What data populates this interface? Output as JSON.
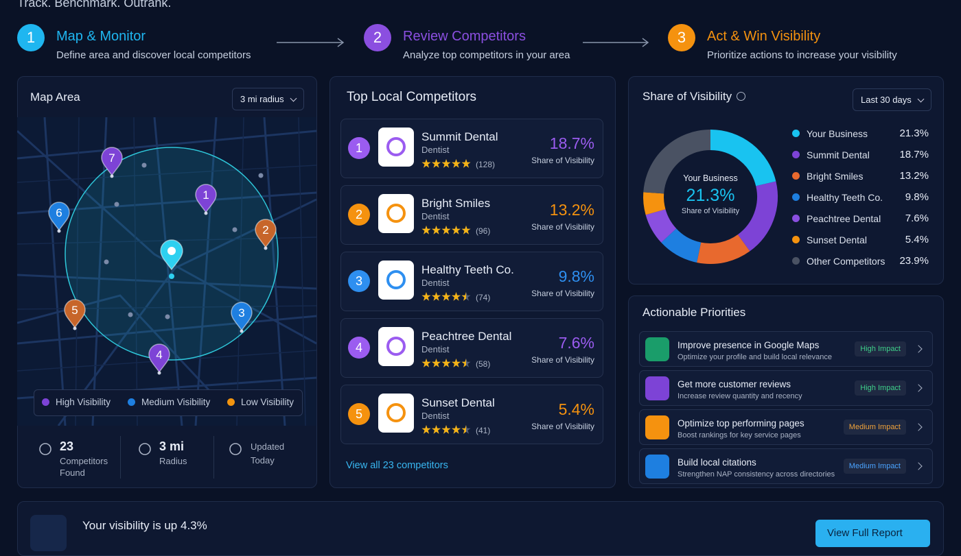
{
  "tagline": "Track. Benchmark. Outrank.",
  "steps": [
    {
      "number": "1",
      "title": "Map & Monitor",
      "subtitle": "Define area and discover local competitors",
      "color": "#1fb6f0"
    },
    {
      "number": "2",
      "title": "Review Competitors",
      "subtitle": "Analyze top competitors in your area",
      "color": "#8b4fe0"
    },
    {
      "number": "3",
      "title": "Act & Win Visibility",
      "subtitle": "Prioritize actions to increase your visibility",
      "color": "#f5920f"
    }
  ],
  "map": {
    "title": "Map Area",
    "radius_select": "3 mi radius",
    "pins": [
      {
        "label": "7",
        "color": "#7d43d6"
      },
      {
        "label": "1",
        "color": "#7d43d6"
      },
      {
        "label": "6",
        "color": "#1e7fe0"
      },
      {
        "label": "2",
        "color": "#c7652a"
      },
      {
        "label": "5",
        "color": "#c7652a"
      },
      {
        "label": "3",
        "color": "#1e7fe0"
      },
      {
        "label": "4",
        "color": "#7d43d6"
      }
    ],
    "legend": [
      {
        "label": "High Visibility",
        "color": "#7d43d6"
      },
      {
        "label": "Medium Visibility",
        "color": "#1e7fe0"
      },
      {
        "label": "Low Visibility",
        "color": "#f2940f"
      }
    ],
    "stats": [
      {
        "value": "23",
        "label": "Competitors Found"
      },
      {
        "value": "3 mi",
        "label": "Radius"
      },
      {
        "value": "Updated",
        "label": "Today"
      }
    ]
  },
  "competitors": {
    "title": "Top Local Competitors",
    "view_all": "View all 23 competitors",
    "items": [
      {
        "rank": "1",
        "name": "Summit Dental",
        "type": "Dentist",
        "rating": 5,
        "reviews": "(128)",
        "share": "18.7%",
        "share_label": "Share of Visibility",
        "color": "#9b5cf0"
      },
      {
        "rank": "2",
        "name": "Bright Smiles",
        "type": "Dentist",
        "rating": 5,
        "reviews": "(96)",
        "share": "13.2%",
        "share_label": "Share of Visibility",
        "color": "#f5920f"
      },
      {
        "rank": "3",
        "name": "Healthy Teeth Co.",
        "type": "Dentist",
        "rating": 4.5,
        "reviews": "(74)",
        "share": "9.8%",
        "share_label": "Share of Visibility",
        "color": "#2e8ff0"
      },
      {
        "rank": "4",
        "name": "Peachtree Dental",
        "type": "Dentist",
        "rating": 4.5,
        "reviews": "(58)",
        "share": "7.6%",
        "share_label": "Share of Visibility",
        "color": "#9b5cf0"
      },
      {
        "rank": "5",
        "name": "Sunset Dental",
        "type": "Dentist",
        "rating": 4.5,
        "reviews": "(41)",
        "share": "5.4%",
        "share_label": "Share of Visibility",
        "color": "#f5920f"
      }
    ]
  },
  "visibility": {
    "title": "Share of Visibility",
    "select": "Last 30 days",
    "center_label": "Share of Visibility",
    "items": [
      {
        "name": "Your Business",
        "color": "#19c3f0",
        "value": 21.3,
        "value_label": "21.3%"
      },
      {
        "name": "Summit Dental",
        "color": "#7d43d6",
        "value": 18.7,
        "value_label": "18.7%"
      },
      {
        "name": "Bright Smiles",
        "color": "#e8692e",
        "value": 13.2,
        "value_label": "13.2%"
      },
      {
        "name": "Healthy Teeth Co.",
        "color": "#1e7fe0",
        "value": 9.8,
        "value_label": "9.8%"
      },
      {
        "name": "Peachtree Dental",
        "color": "#8a4fe0",
        "value": 7.6,
        "value_label": "7.6%"
      },
      {
        "name": "Sunset Dental",
        "color": "#f5920f",
        "value": 5.4,
        "value_label": "5.4%"
      },
      {
        "name": "Other Competitors",
        "color": "#4a5263",
        "value": 23.9,
        "value_label": "23.9%"
      }
    ]
  },
  "priorities": {
    "title": "Actionable Priorities",
    "items": [
      {
        "title": "Improve presence in Google Maps",
        "subtitle": "Optimize your profile and build local relevance",
        "impact": "High Impact",
        "icon_color": "#1a9d6a",
        "impact_color": "#3ed08a"
      },
      {
        "title": "Get more customer reviews",
        "subtitle": "Increase review quantity and recency",
        "impact": "High Impact",
        "icon_color": "#7d43d6",
        "impact_color": "#3ed08a"
      },
      {
        "title": "Optimize top performing pages",
        "subtitle": "Boost rankings for key service pages",
        "impact": "Medium Impact",
        "icon_color": "#f5920f",
        "impact_color": "#f0a23a"
      },
      {
        "title": "Build local citations",
        "subtitle": "Strengthen NAP consistency across directories",
        "impact": "Medium Impact",
        "icon_color": "#1e7fe0",
        "impact_color": "#4aa3ff"
      }
    ]
  },
  "banner": {
    "title": "Your visibility is up 4.3%",
    "button": "View Full Report"
  }
}
